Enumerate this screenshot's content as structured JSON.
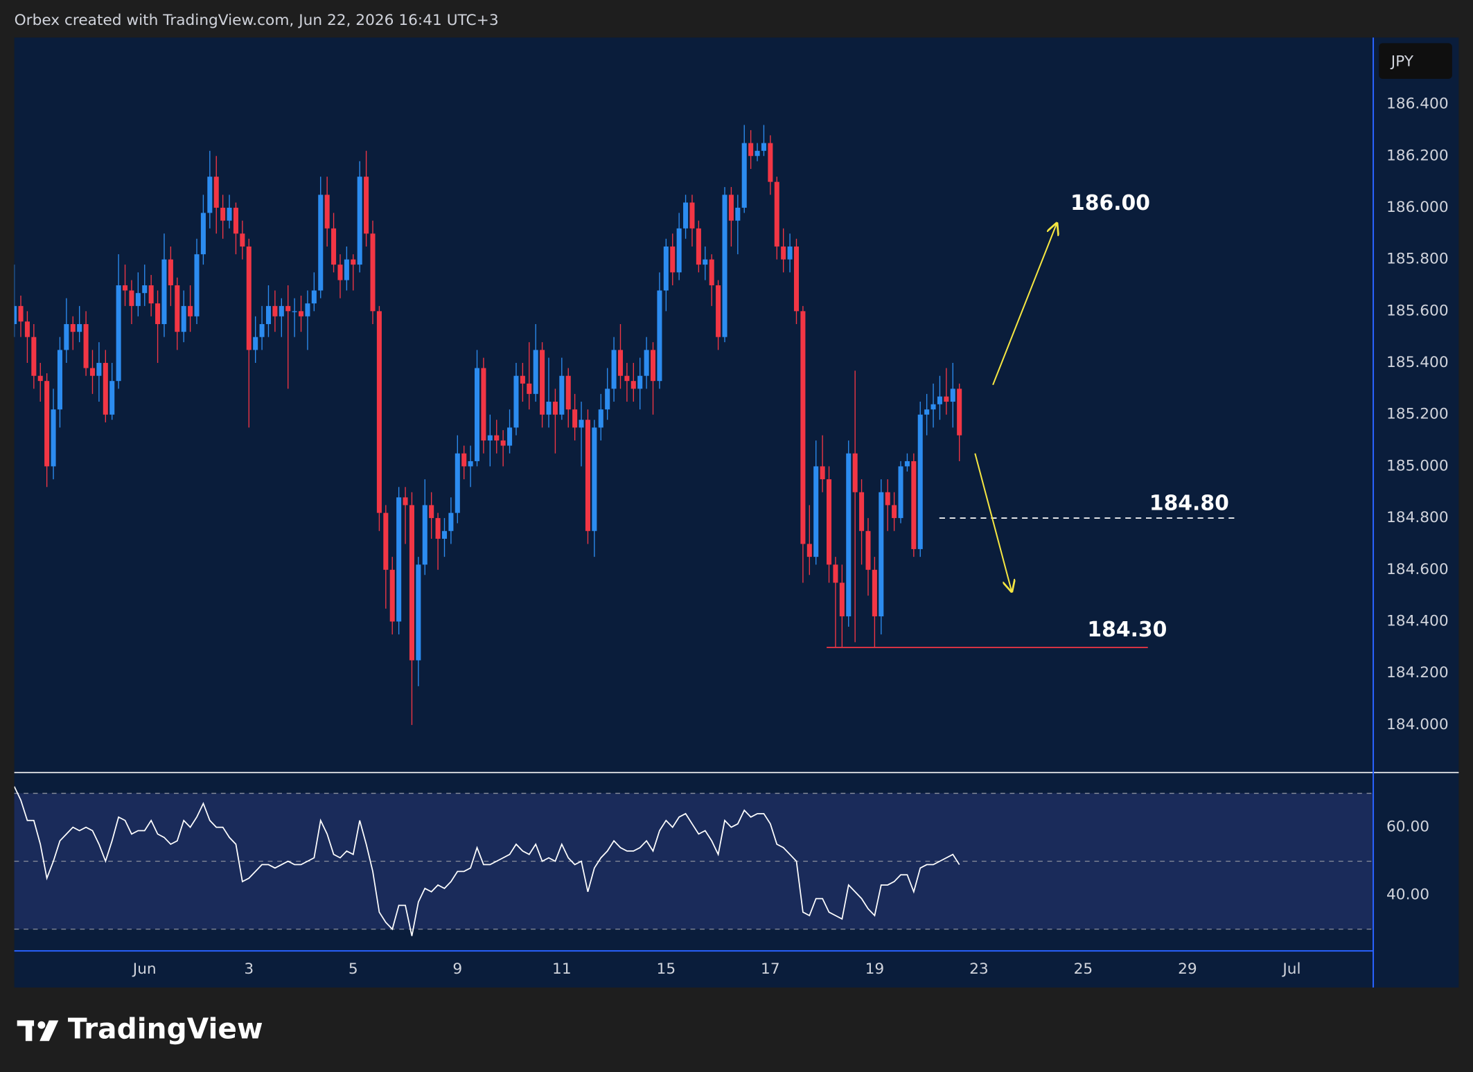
{
  "header": {
    "text": "Orbex created with TradingView.com, Jun 22, 2026 16:41 UTC+3"
  },
  "chart_data": {
    "type": "candlestick",
    "currency": "JPY",
    "up_color": "#2c8cf0",
    "down_color": "#f23645",
    "open": [
      185.55,
      185.62,
      185.56,
      185.5,
      185.35,
      185.33,
      185.0,
      185.22,
      185.45,
      185.55,
      185.52,
      185.55,
      185.38,
      185.35,
      185.4,
      185.2,
      185.33,
      185.7,
      185.68,
      185.62,
      185.67,
      185.7,
      185.63,
      185.55,
      185.8,
      185.7,
      185.52,
      185.62,
      185.58,
      185.82,
      185.98,
      186.12,
      186.0,
      185.95,
      186.0,
      185.9,
      185.85,
      185.45,
      185.5,
      185.55,
      185.62,
      185.58,
      185.62,
      185.6,
      185.6,
      185.58,
      185.63,
      185.68,
      186.05,
      185.92,
      185.78,
      185.72,
      185.8,
      185.78,
      186.12,
      185.9,
      185.6,
      184.82,
      184.6,
      184.4,
      184.88,
      184.85,
      184.25,
      184.62,
      184.85,
      184.8,
      184.72,
      184.75,
      184.82,
      185.05,
      185.0,
      185.02,
      185.38,
      185.1,
      185.12,
      185.1,
      185.08,
      185.15,
      185.35,
      185.32,
      185.28,
      185.45,
      185.2,
      185.25,
      185.2,
      185.35,
      185.22,
      185.15,
      185.18,
      184.75,
      185.15,
      185.22,
      185.3,
      185.45,
      185.35,
      185.33,
      185.3,
      185.35,
      185.45,
      185.33,
      185.68,
      185.85,
      185.75,
      185.92,
      186.02,
      185.92,
      185.78,
      185.8,
      185.7,
      185.5,
      186.05,
      185.95,
      186.0,
      186.25,
      186.2,
      186.22,
      186.25,
      186.1,
      185.85,
      185.8,
      185.85,
      185.6,
      184.7,
      184.65,
      185.0,
      184.95,
      184.62,
      184.55,
      184.42,
      185.05,
      184.9,
      184.75,
      184.6,
      184.42,
      184.9,
      184.85,
      184.8,
      185.0,
      185.02,
      184.68,
      185.2,
      185.22,
      185.24,
      185.27,
      185.25,
      185.3
    ],
    "high": [
      185.78,
      185.66,
      185.6,
      185.55,
      185.4,
      185.36,
      185.3,
      185.5,
      185.65,
      185.58,
      185.62,
      185.6,
      185.45,
      185.48,
      185.45,
      185.4,
      185.82,
      185.78,
      185.72,
      185.75,
      185.78,
      185.74,
      185.68,
      185.9,
      185.85,
      185.73,
      185.68,
      185.7,
      185.88,
      186.05,
      186.22,
      186.2,
      186.05,
      186.05,
      186.02,
      185.95,
      185.88,
      185.58,
      185.62,
      185.7,
      185.68,
      185.65,
      185.7,
      185.65,
      185.66,
      185.68,
      185.75,
      186.12,
      186.12,
      185.98,
      185.82,
      185.85,
      185.82,
      186.18,
      186.22,
      185.95,
      185.62,
      184.85,
      184.65,
      184.92,
      184.92,
      184.9,
      184.65,
      184.95,
      184.9,
      184.82,
      184.8,
      184.88,
      185.12,
      185.08,
      185.08,
      185.45,
      185.42,
      185.2,
      185.18,
      185.14,
      185.22,
      185.4,
      185.4,
      185.48,
      185.55,
      185.48,
      185.42,
      185.3,
      185.42,
      185.38,
      185.28,
      185.25,
      185.22,
      185.18,
      185.28,
      185.38,
      185.5,
      185.55,
      185.4,
      185.4,
      185.42,
      185.5,
      185.48,
      185.75,
      185.88,
      185.9,
      185.98,
      186.05,
      186.05,
      185.95,
      185.85,
      185.82,
      185.72,
      186.08,
      186.08,
      186.05,
      186.32,
      186.3,
      186.25,
      186.32,
      186.28,
      186.12,
      185.92,
      185.9,
      185.88,
      185.62,
      184.85,
      185.1,
      185.12,
      185.0,
      184.65,
      184.62,
      185.1,
      185.37,
      184.95,
      184.8,
      184.65,
      184.95,
      184.95,
      184.9,
      185.02,
      185.05,
      185.05,
      185.25,
      185.28,
      185.32,
      185.35,
      185.38,
      185.4,
      185.32
    ],
    "low": [
      185.5,
      185.5,
      185.4,
      185.3,
      185.25,
      184.92,
      184.95,
      185.15,
      185.4,
      185.45,
      185.48,
      185.35,
      185.28,
      185.25,
      185.17,
      185.18,
      185.3,
      185.62,
      185.55,
      185.58,
      185.62,
      185.58,
      185.4,
      185.5,
      185.62,
      185.45,
      185.48,
      185.52,
      185.55,
      185.78,
      185.92,
      185.9,
      185.88,
      185.92,
      185.82,
      185.8,
      185.15,
      185.4,
      185.45,
      185.5,
      185.52,
      185.5,
      185.3,
      185.5,
      185.52,
      185.45,
      185.6,
      185.65,
      185.85,
      185.75,
      185.65,
      185.68,
      185.68,
      185.75,
      185.85,
      185.55,
      184.75,
      184.45,
      184.35,
      184.35,
      184.7,
      184.0,
      184.15,
      184.58,
      184.72,
      184.6,
      184.65,
      184.7,
      184.78,
      184.95,
      184.92,
      185.0,
      185.05,
      185.0,
      185.05,
      185.0,
      185.05,
      185.12,
      185.25,
      185.22,
      185.25,
      185.15,
      185.15,
      185.05,
      185.18,
      185.15,
      185.1,
      185.0,
      184.7,
      184.65,
      185.1,
      185.18,
      185.25,
      185.3,
      185.25,
      185.25,
      185.22,
      185.3,
      185.2,
      185.3,
      185.6,
      185.7,
      185.72,
      185.88,
      185.85,
      185.75,
      185.72,
      185.62,
      185.45,
      185.48,
      185.85,
      185.82,
      185.98,
      186.15,
      186.18,
      186.2,
      186.05,
      185.8,
      185.75,
      185.75,
      185.55,
      184.55,
      184.58,
      184.62,
      184.9,
      184.55,
      184.3,
      184.3,
      184.38,
      184.32,
      184.62,
      184.5,
      184.3,
      184.35,
      184.75,
      184.75,
      184.78,
      184.98,
      184.65,
      184.65,
      185.12,
      185.15,
      185.18,
      185.2,
      185.15,
      185.02
    ],
    "close": [
      185.62,
      185.56,
      185.5,
      185.35,
      185.33,
      185.0,
      185.22,
      185.45,
      185.55,
      185.52,
      185.55,
      185.38,
      185.35,
      185.4,
      185.2,
      185.33,
      185.7,
      185.68,
      185.62,
      185.67,
      185.7,
      185.63,
      185.55,
      185.8,
      185.7,
      185.52,
      185.62,
      185.58,
      185.82,
      185.98,
      186.12,
      186.0,
      185.95,
      186.0,
      185.9,
      185.85,
      185.45,
      185.5,
      185.55,
      185.62,
      185.58,
      185.62,
      185.6,
      185.6,
      185.58,
      185.63,
      185.68,
      186.05,
      185.92,
      185.78,
      185.72,
      185.8,
      185.78,
      186.12,
      185.9,
      185.6,
      184.82,
      184.6,
      184.4,
      184.88,
      184.85,
      184.25,
      184.62,
      184.85,
      184.8,
      184.72,
      184.75,
      184.82,
      185.05,
      185.0,
      185.02,
      185.38,
      185.1,
      185.12,
      185.1,
      185.08,
      185.15,
      185.35,
      185.32,
      185.28,
      185.45,
      185.2,
      185.25,
      185.2,
      185.35,
      185.22,
      185.15,
      185.18,
      184.75,
      185.15,
      185.22,
      185.3,
      185.45,
      185.35,
      185.33,
      185.3,
      185.35,
      185.45,
      185.33,
      185.68,
      185.85,
      185.75,
      185.92,
      186.02,
      185.92,
      185.78,
      185.8,
      185.7,
      185.5,
      186.05,
      185.95,
      186.0,
      186.25,
      186.2,
      186.22,
      186.25,
      186.1,
      185.85,
      185.8,
      185.85,
      185.6,
      184.7,
      184.65,
      185.0,
      184.95,
      184.62,
      184.55,
      184.42,
      185.05,
      184.9,
      184.75,
      184.6,
      184.42,
      184.9,
      184.85,
      184.8,
      185.0,
      185.02,
      184.68,
      185.2,
      185.22,
      185.24,
      185.27,
      185.25,
      185.3,
      185.12
    ],
    "xlim": [
      0,
      208.5
    ],
    "xticks": [
      {
        "value": 20,
        "label": "Jun"
      },
      {
        "value": 36,
        "label": "3"
      },
      {
        "value": 52,
        "label": "5"
      },
      {
        "value": 68,
        "label": "9"
      },
      {
        "value": 84,
        "label": "11"
      },
      {
        "value": 100,
        "label": "15"
      },
      {
        "value": 116,
        "label": "17"
      },
      {
        "value": 132,
        "label": "19"
      },
      {
        "value": 148,
        "label": "23"
      },
      {
        "value": 164,
        "label": "25"
      },
      {
        "value": 180,
        "label": "29"
      },
      {
        "value": 196,
        "label": "Jul"
      }
    ],
    "ylim": [
      183.816,
      186.658
    ],
    "yticks": [
      {
        "value": 184,
        "label": "184.000"
      },
      {
        "value": 184.2,
        "label": "184.200"
      },
      {
        "value": 184.4,
        "label": "184.400"
      },
      {
        "value": 184.6,
        "label": "184.600"
      },
      {
        "value": 184.8,
        "label": "184.800"
      },
      {
        "value": 185,
        "label": "185.000"
      },
      {
        "value": 185.2,
        "label": "185.200"
      },
      {
        "value": 185.4,
        "label": "185.400"
      },
      {
        "value": 185.6,
        "label": "185.600"
      },
      {
        "value": 185.8,
        "label": "185.800"
      },
      {
        "value": 186,
        "label": "186.000"
      },
      {
        "value": 186.2,
        "label": "186.200"
      },
      {
        "value": 186.4,
        "label": "186.400"
      }
    ],
    "annotations": [
      {
        "value": 186,
        "label": "186.00"
      },
      {
        "value": 184.8,
        "label": "184.80",
        "line": "dashed",
        "color": "#ffffff"
      },
      {
        "value": 184.3,
        "label": "184.30",
        "line": "solid",
        "color": "#f23645"
      }
    ],
    "rsi": {
      "type": "line",
      "color": "#ffffff",
      "values": [
        72,
        68,
        62,
        62,
        55,
        45,
        50,
        56,
        58,
        60,
        59,
        60,
        59,
        55,
        50,
        56,
        63,
        62,
        58,
        59,
        59,
        62,
        58,
        57,
        55,
        56,
        62,
        60,
        63,
        67,
        62,
        60,
        60,
        57,
        55,
        44,
        45,
        47,
        49,
        49,
        48,
        49,
        50,
        49,
        49,
        50,
        51,
        62,
        58,
        52,
        51,
        53,
        52,
        62,
        55,
        47,
        35,
        32,
        30,
        37,
        37,
        28,
        38,
        42,
        41,
        43,
        42,
        44,
        47,
        47,
        48,
        54,
        49,
        49,
        50,
        51,
        52,
        55,
        53,
        52,
        55,
        50,
        51,
        50,
        55,
        51,
        49,
        50,
        41,
        48,
        51,
        53,
        56,
        54,
        53,
        53,
        54,
        56,
        53,
        59,
        62,
        60,
        63,
        64,
        61,
        58,
        59,
        56,
        52,
        62,
        60,
        61,
        65,
        63,
        64,
        64,
        61,
        55,
        54,
        52,
        50,
        35,
        34,
        39,
        39,
        35,
        34,
        33,
        43,
        41,
        39,
        36,
        34,
        43,
        43,
        44,
        46,
        46,
        41,
        48,
        49,
        49,
        50,
        51,
        52,
        49
      ],
      "ylim": [
        23.6,
        76.1
      ],
      "yticks": [
        {
          "value": 40,
          "label": "40.00"
        },
        {
          "value": 60,
          "label": "60.00"
        }
      ],
      "levels": [
        30,
        50,
        70
      ]
    }
  },
  "footer": {
    "brand": "TradingView"
  }
}
